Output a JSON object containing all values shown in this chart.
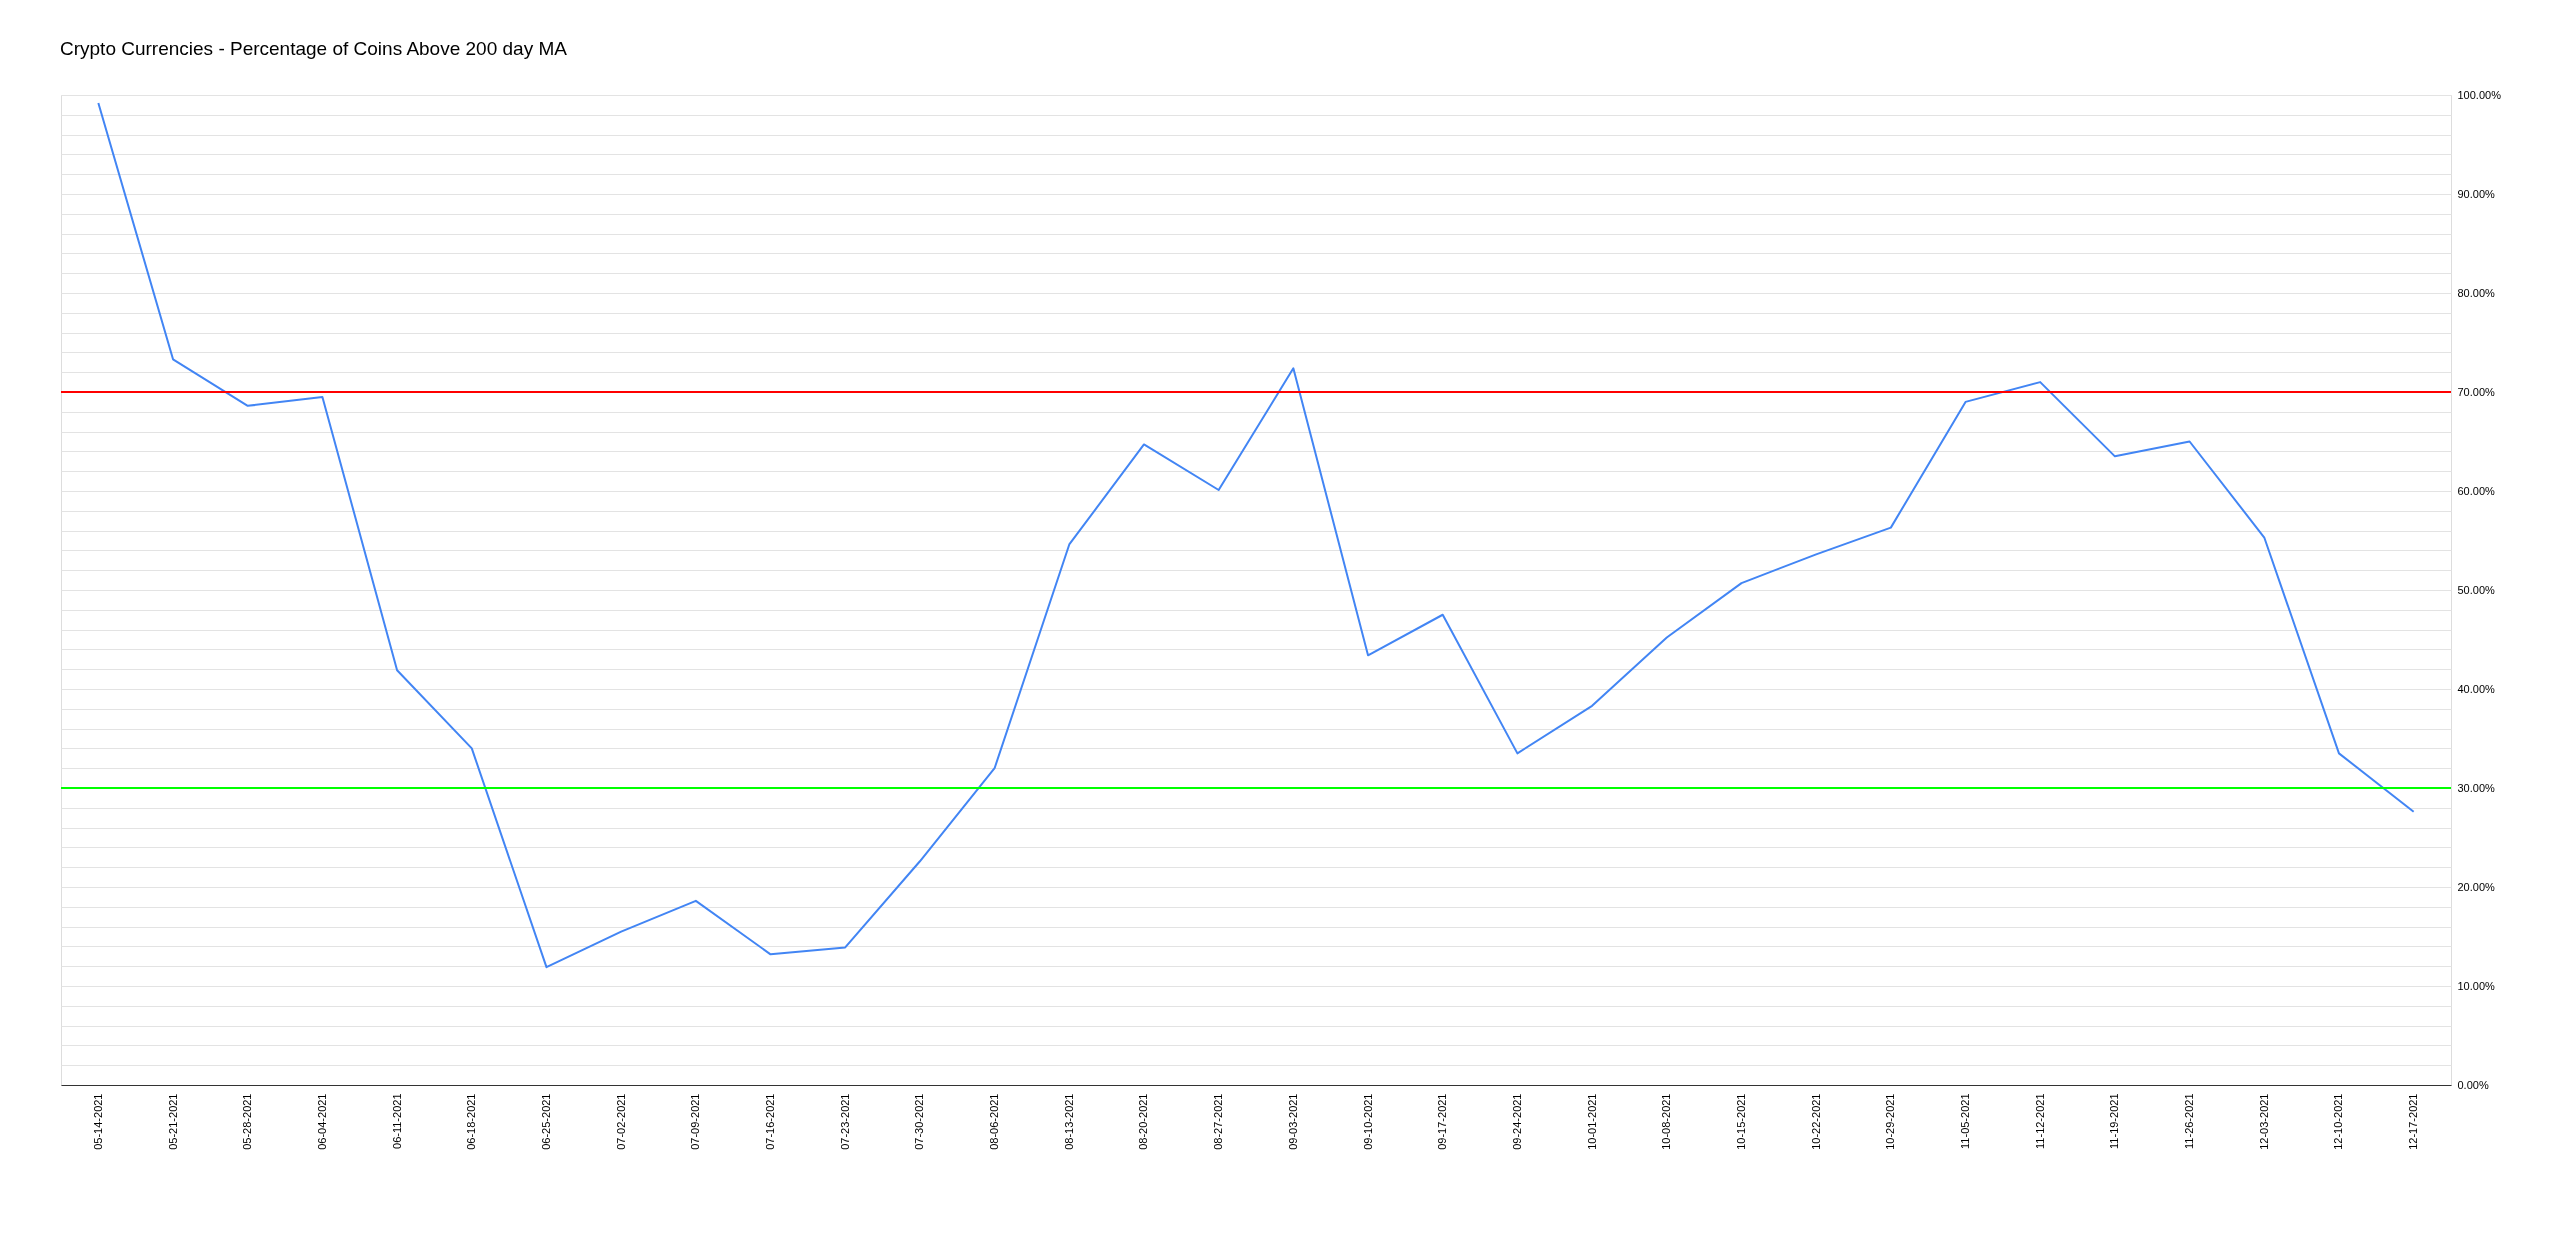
{
  "chart_data": {
    "type": "line",
    "title": "Crypto Currencies - Percentage of Coins Above 200 day MA",
    "categories": [
      "05-14-2021",
      "05-21-2021",
      "05-28-2021",
      "06-04-2021",
      "06-11-2021",
      "06-18-2021",
      "06-25-2021",
      "07-02-2021",
      "07-09-2021",
      "07-16-2021",
      "07-23-2021",
      "07-30-2021",
      "08-06-2021",
      "08-13-2021",
      "08-20-2021",
      "08-27-2021",
      "09-03-2021",
      "09-10-2021",
      "09-17-2021",
      "09-24-2021",
      "10-01-2021",
      "10-08-2021",
      "10-15-2021",
      "10-22-2021",
      "10-29-2021",
      "11-05-2021",
      "11-12-2021",
      "11-19-2021",
      "11-26-2021",
      "12-03-2021",
      "12-10-2021",
      "12-17-2021"
    ],
    "series": [
      {
        "color": "#4285f4",
        "values": [
          99.2,
          73.3,
          68.6,
          69.5,
          41.9,
          34.0,
          11.9,
          15.5,
          18.6,
          13.2,
          13.9,
          22.6,
          32.0,
          54.6,
          64.7,
          60.1,
          72.4,
          43.4,
          47.5,
          33.5,
          38.3,
          45.2,
          50.7,
          53.6,
          56.3,
          69.0,
          71.0,
          63.5,
          65.0,
          55.3,
          33.5,
          27.6
        ]
      }
    ],
    "ylim": [
      0,
      100
    ],
    "yticks": [
      {
        "value": 0,
        "label": "0.00%"
      },
      {
        "value": 2,
        "label": null
      },
      {
        "value": 4,
        "label": null
      },
      {
        "value": 6,
        "label": null
      },
      {
        "value": 8,
        "label": null
      },
      {
        "value": 10,
        "label": "10.00%"
      },
      {
        "value": 12,
        "label": null
      },
      {
        "value": 14,
        "label": null
      },
      {
        "value": 16,
        "label": null
      },
      {
        "value": 18,
        "label": null
      },
      {
        "value": 20,
        "label": "20.00%"
      },
      {
        "value": 22,
        "label": null
      },
      {
        "value": 24,
        "label": null
      },
      {
        "value": 26,
        "label": null
      },
      {
        "value": 28,
        "label": null
      },
      {
        "value": 30,
        "label": "30.00%"
      },
      {
        "value": 32,
        "label": null
      },
      {
        "value": 34,
        "label": null
      },
      {
        "value": 36,
        "label": null
      },
      {
        "value": 38,
        "label": null
      },
      {
        "value": 40,
        "label": "40.00%"
      },
      {
        "value": 42,
        "label": null
      },
      {
        "value": 44,
        "label": null
      },
      {
        "value": 46,
        "label": null
      },
      {
        "value": 48,
        "label": null
      },
      {
        "value": 50,
        "label": "50.00%"
      },
      {
        "value": 52,
        "label": null
      },
      {
        "value": 54,
        "label": null
      },
      {
        "value": 56,
        "label": null
      },
      {
        "value": 58,
        "label": null
      },
      {
        "value": 60,
        "label": "60.00%"
      },
      {
        "value": 62,
        "label": null
      },
      {
        "value": 64,
        "label": null
      },
      {
        "value": 66,
        "label": null
      },
      {
        "value": 68,
        "label": null
      },
      {
        "value": 70,
        "label": "70.00%"
      },
      {
        "value": 72,
        "label": null
      },
      {
        "value": 74,
        "label": null
      },
      {
        "value": 76,
        "label": null
      },
      {
        "value": 78,
        "label": null
      },
      {
        "value": 80,
        "label": "80.00%"
      },
      {
        "value": 82,
        "label": null
      },
      {
        "value": 84,
        "label": null
      },
      {
        "value": 86,
        "label": null
      },
      {
        "value": 88,
        "label": null
      },
      {
        "value": 90,
        "label": "90.00%"
      },
      {
        "value": 92,
        "label": null
      },
      {
        "value": 94,
        "label": null
      },
      {
        "value": 96,
        "label": null
      },
      {
        "value": 98,
        "label": null
      },
      {
        "value": 100,
        "label": "100.00%"
      }
    ],
    "ref_lines": [
      {
        "axis": "y",
        "value": 70,
        "color": "#ff0000"
      },
      {
        "axis": "y",
        "value": 30,
        "color": "#00ff00"
      }
    ],
    "grid": "y",
    "legend": false,
    "marker": "none",
    "line_style": "solid"
  }
}
